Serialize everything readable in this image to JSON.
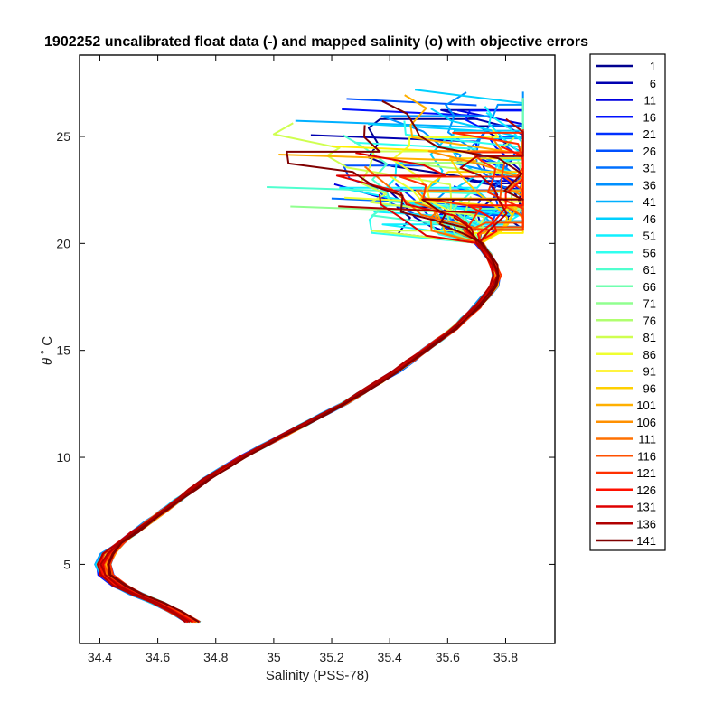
{
  "chart_data": {
    "type": "line",
    "title": "1902252 uncalibrated float data (-) and mapped salinity (o) with objective errors",
    "xlabel": "Salinity (PSS-78)",
    "ylabel_symbol": "θ",
    "ylabel_unit": "˚ C",
    "xlim": [
      34.33,
      35.97
    ],
    "ylim": [
      1.3,
      28.8
    ],
    "xticks": [
      34.4,
      34.6,
      34.8,
      35,
      35.2,
      35.4,
      35.6,
      35.8
    ],
    "xtick_labels": [
      "34.4",
      "34.6",
      "34.8",
      "35",
      "35.2",
      "35.4",
      "35.6",
      "35.8"
    ],
    "yticks": [
      5,
      10,
      15,
      20,
      25
    ],
    "ytick_labels": [
      "5",
      "10",
      "15",
      "20",
      "25"
    ],
    "grid": false,
    "legend_position": "outside-right",
    "base_profile": {
      "theta": [
        2.3,
        2.8,
        3.2,
        3.6,
        4.0,
        4.5,
        5.0,
        5.5,
        6.0,
        6.5,
        7.0,
        7.5,
        8.0,
        8.5,
        9.0,
        9.5,
        10.0,
        10.5,
        11.0,
        11.5,
        12.0,
        12.5,
        13.0,
        13.5,
        14.0,
        14.5,
        15.0,
        15.5,
        16.0,
        16.5,
        17.0,
        17.5,
        18.0,
        18.5,
        19.0,
        19.5,
        20.0
      ],
      "salinity": [
        34.72,
        34.66,
        34.6,
        34.53,
        34.47,
        34.42,
        34.41,
        34.43,
        34.47,
        34.52,
        34.57,
        34.62,
        34.67,
        34.72,
        34.77,
        34.83,
        34.89,
        34.96,
        35.03,
        35.1,
        35.17,
        35.24,
        35.3,
        35.36,
        35.42,
        35.47,
        35.52,
        35.57,
        35.62,
        35.66,
        35.7,
        35.73,
        35.76,
        35.77,
        35.76,
        35.74,
        35.71
      ]
    },
    "series": [
      {
        "name": "1",
        "color": "#00008f"
      },
      {
        "name": "6",
        "color": "#0000b0"
      },
      {
        "name": "11",
        "color": "#0000df"
      },
      {
        "name": "16",
        "color": "#0010ff"
      },
      {
        "name": "21",
        "color": "#0030ff"
      },
      {
        "name": "26",
        "color": "#0050ff"
      },
      {
        "name": "31",
        "color": "#0070ff"
      },
      {
        "name": "36",
        "color": "#0090ff"
      },
      {
        "name": "41",
        "color": "#00b0ff"
      },
      {
        "name": "46",
        "color": "#00d0ff"
      },
      {
        "name": "51",
        "color": "#10f0ff"
      },
      {
        "name": "56",
        "color": "#30ffef"
      },
      {
        "name": "61",
        "color": "#50ffcf"
      },
      {
        "name": "66",
        "color": "#70ffaf"
      },
      {
        "name": "71",
        "color": "#90ff8f"
      },
      {
        "name": "76",
        "color": "#b0ff6f"
      },
      {
        "name": "81",
        "color": "#cfff50"
      },
      {
        "name": "86",
        "color": "#efff30"
      },
      {
        "name": "91",
        "color": "#fff000"
      },
      {
        "name": "96",
        "color": "#ffd000"
      },
      {
        "name": "101",
        "color": "#ffb000"
      },
      {
        "name": "106",
        "color": "#ff9000"
      },
      {
        "name": "111",
        "color": "#ff7000"
      },
      {
        "name": "116",
        "color": "#ff5000"
      },
      {
        "name": "121",
        "color": "#ff3000"
      },
      {
        "name": "126",
        "color": "#ff1000"
      },
      {
        "name": "131",
        "color": "#df0000"
      },
      {
        "name": "136",
        "color": "#b00000"
      },
      {
        "name": "141",
        "color": "#800000"
      }
    ]
  }
}
